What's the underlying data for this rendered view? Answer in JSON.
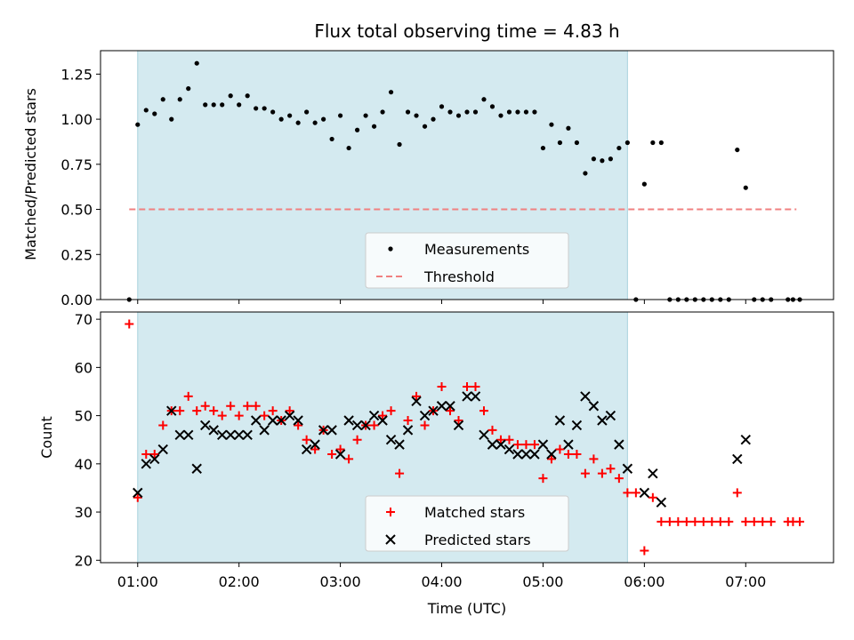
{
  "colors": {
    "observing_span": "#d4eaf0",
    "threshold": "#f08080",
    "matched": "#ff0000",
    "predicted": "#000000",
    "ratio": "#000000"
  },
  "x_ticks": [
    "01:00",
    "02:00",
    "03:00",
    "04:00",
    "05:00",
    "06:00",
    "07:00"
  ],
  "chart_data": [
    {
      "type": "scatter",
      "title": "Flux total observing time = 4.83 h",
      "ylabel": "Matched/Predicted stars",
      "xlim": [
        "00:38",
        "07:52"
      ],
      "ylim": [
        0,
        1.38
      ],
      "y_ticks": [
        "0.00",
        "0.25",
        "0.50",
        "0.75",
        "1.00",
        "1.25"
      ],
      "shaded_span": [
        "01:00",
        "05:50"
      ],
      "threshold": {
        "value": 0.5,
        "x_range": [
          "00:55",
          "07:30"
        ]
      },
      "legend": {
        "position": "lower-center",
        "entries": [
          "Measurements",
          "Threshold"
        ]
      },
      "series": [
        {
          "name": "Measurements",
          "points": [
            [
              "00:55",
              0.0
            ],
            [
              "01:00",
              0.97
            ],
            [
              "01:05",
              1.05
            ],
            [
              "01:10",
              1.03
            ],
            [
              "01:15",
              1.11
            ],
            [
              "01:20",
              1.0
            ],
            [
              "01:25",
              1.11
            ],
            [
              "01:30",
              1.17
            ],
            [
              "01:35",
              1.31
            ],
            [
              "01:40",
              1.08
            ],
            [
              "01:45",
              1.08
            ],
            [
              "01:50",
              1.08
            ],
            [
              "01:55",
              1.13
            ],
            [
              "02:00",
              1.08
            ],
            [
              "02:05",
              1.13
            ],
            [
              "02:10",
              1.06
            ],
            [
              "02:15",
              1.06
            ],
            [
              "02:20",
              1.04
            ],
            [
              "02:25",
              1.0
            ],
            [
              "02:30",
              1.02
            ],
            [
              "02:35",
              0.98
            ],
            [
              "02:40",
              1.04
            ],
            [
              "02:45",
              0.98
            ],
            [
              "02:50",
              1.0
            ],
            [
              "02:55",
              0.89
            ],
            [
              "03:00",
              1.02
            ],
            [
              "03:05",
              0.84
            ],
            [
              "03:10",
              0.94
            ],
            [
              "03:15",
              1.02
            ],
            [
              "03:20",
              0.96
            ],
            [
              "03:25",
              1.04
            ],
            [
              "03:30",
              1.15
            ],
            [
              "03:35",
              0.86
            ],
            [
              "03:40",
              1.04
            ],
            [
              "03:45",
              1.02
            ],
            [
              "03:50",
              0.96
            ],
            [
              "03:55",
              1.0
            ],
            [
              "04:00",
              1.07
            ],
            [
              "04:05",
              1.04
            ],
            [
              "04:10",
              1.02
            ],
            [
              "04:15",
              1.04
            ],
            [
              "04:20",
              1.04
            ],
            [
              "04:25",
              1.11
            ],
            [
              "04:30",
              1.07
            ],
            [
              "04:35",
              1.02
            ],
            [
              "04:40",
              1.04
            ],
            [
              "04:45",
              1.04
            ],
            [
              "04:50",
              1.04
            ],
            [
              "04:55",
              1.04
            ],
            [
              "05:00",
              0.84
            ],
            [
              "05:05",
              0.97
            ],
            [
              "05:10",
              0.87
            ],
            [
              "05:15",
              0.95
            ],
            [
              "05:20",
              0.87
            ],
            [
              "05:25",
              0.7
            ],
            [
              "05:30",
              0.78
            ],
            [
              "05:35",
              0.77
            ],
            [
              "05:40",
              0.78
            ],
            [
              "05:45",
              0.84
            ],
            [
              "05:50",
              0.87
            ],
            [
              "05:55",
              0.0
            ],
            [
              "06:00",
              0.64
            ],
            [
              "06:05",
              0.87
            ],
            [
              "06:10",
              0.87
            ],
            [
              "06:15",
              0.0
            ],
            [
              "06:20",
              0.0
            ],
            [
              "06:25",
              0.0
            ],
            [
              "06:30",
              0.0
            ],
            [
              "06:35",
              0.0
            ],
            [
              "06:40",
              0.0
            ],
            [
              "06:45",
              0.0
            ],
            [
              "06:50",
              0.0
            ],
            [
              "06:55",
              0.83
            ],
            [
              "07:00",
              0.62
            ],
            [
              "07:05",
              0.0
            ],
            [
              "07:10",
              0.0
            ],
            [
              "07:15",
              0.0
            ],
            [
              "07:25",
              0.0
            ],
            [
              "07:28",
              0.0
            ],
            [
              "07:32",
              0.0
            ]
          ]
        }
      ]
    },
    {
      "type": "scatter",
      "title": "",
      "xlabel": "Time (UTC)",
      "ylabel": "Count",
      "xlim": [
        "00:38",
        "07:52"
      ],
      "ylim": [
        19.5,
        71.5
      ],
      "y_ticks": [
        "20",
        "30",
        "40",
        "50",
        "60",
        "70"
      ],
      "shaded_span": [
        "01:00",
        "05:50"
      ],
      "legend": {
        "position": "lower-center",
        "entries": [
          "Matched stars",
          "Predicted stars"
        ]
      },
      "series": [
        {
          "name": "Matched stars",
          "marker": "plus",
          "points": [
            [
              "00:55",
              69
            ],
            [
              "01:00",
              33
            ],
            [
              "01:05",
              42
            ],
            [
              "01:10",
              42
            ],
            [
              "01:15",
              48
            ],
            [
              "01:20",
              51
            ],
            [
              "01:25",
              51
            ],
            [
              "01:30",
              54
            ],
            [
              "01:35",
              51
            ],
            [
              "01:40",
              52
            ],
            [
              "01:45",
              51
            ],
            [
              "01:50",
              50
            ],
            [
              "01:55",
              52
            ],
            [
              "02:00",
              50
            ],
            [
              "02:05",
              52
            ],
            [
              "02:10",
              52
            ],
            [
              "02:15",
              50
            ],
            [
              "02:20",
              51
            ],
            [
              "02:25",
              49
            ],
            [
              "02:30",
              51
            ],
            [
              "02:35",
              48
            ],
            [
              "02:40",
              45
            ],
            [
              "02:45",
              43
            ],
            [
              "02:50",
              47
            ],
            [
              "02:55",
              42
            ],
            [
              "03:00",
              43
            ],
            [
              "03:05",
              41
            ],
            [
              "03:10",
              45
            ],
            [
              "03:15",
              48
            ],
            [
              "03:20",
              48
            ],
            [
              "03:25",
              50
            ],
            [
              "03:30",
              51
            ],
            [
              "03:35",
              38
            ],
            [
              "03:40",
              49
            ],
            [
              "03:45",
              54
            ],
            [
              "03:50",
              48
            ],
            [
              "03:55",
              51
            ],
            [
              "04:00",
              56
            ],
            [
              "04:05",
              51
            ],
            [
              "04:10",
              49
            ],
            [
              "04:15",
              56
            ],
            [
              "04:20",
              56
            ],
            [
              "04:25",
              51
            ],
            [
              "04:30",
              47
            ],
            [
              "04:35",
              45
            ],
            [
              "04:40",
              45
            ],
            [
              "04:45",
              44
            ],
            [
              "04:50",
              44
            ],
            [
              "04:55",
              44
            ],
            [
              "05:00",
              37
            ],
            [
              "05:05",
              41
            ],
            [
              "05:10",
              43
            ],
            [
              "05:15",
              42
            ],
            [
              "05:20",
              42
            ],
            [
              "05:25",
              38
            ],
            [
              "05:30",
              41
            ],
            [
              "05:35",
              38
            ],
            [
              "05:40",
              39
            ],
            [
              "05:45",
              37
            ],
            [
              "05:50",
              34
            ],
            [
              "05:55",
              34
            ],
            [
              "06:00",
              22
            ],
            [
              "06:05",
              33
            ],
            [
              "06:10",
              28
            ],
            [
              "06:15",
              28
            ],
            [
              "06:20",
              28
            ],
            [
              "06:25",
              28
            ],
            [
              "06:30",
              28
            ],
            [
              "06:35",
              28
            ],
            [
              "06:40",
              28
            ],
            [
              "06:45",
              28
            ],
            [
              "06:50",
              28
            ],
            [
              "06:55",
              34
            ],
            [
              "07:00",
              28
            ],
            [
              "07:05",
              28
            ],
            [
              "07:10",
              28
            ],
            [
              "07:15",
              28
            ],
            [
              "07:25",
              28
            ],
            [
              "07:28",
              28
            ],
            [
              "07:32",
              28
            ]
          ]
        },
        {
          "name": "Predicted stars",
          "marker": "x",
          "points": [
            [
              "01:00",
              34
            ],
            [
              "01:05",
              40
            ],
            [
              "01:10",
              41
            ],
            [
              "01:15",
              43
            ],
            [
              "01:20",
              51
            ],
            [
              "01:25",
              46
            ],
            [
              "01:30",
              46
            ],
            [
              "01:35",
              39
            ],
            [
              "01:40",
              48
            ],
            [
              "01:45",
              47
            ],
            [
              "01:50",
              46
            ],
            [
              "01:55",
              46
            ],
            [
              "02:00",
              46
            ],
            [
              "02:05",
              46
            ],
            [
              "02:10",
              49
            ],
            [
              "02:15",
              47
            ],
            [
              "02:20",
              49
            ],
            [
              "02:25",
              49
            ],
            [
              "02:30",
              50
            ],
            [
              "02:35",
              49
            ],
            [
              "02:40",
              43
            ],
            [
              "02:45",
              44
            ],
            [
              "02:50",
              47
            ],
            [
              "02:55",
              47
            ],
            [
              "03:00",
              42
            ],
            [
              "03:05",
              49
            ],
            [
              "03:10",
              48
            ],
            [
              "03:15",
              48
            ],
            [
              "03:20",
              50
            ],
            [
              "03:25",
              49
            ],
            [
              "03:30",
              45
            ],
            [
              "03:35",
              44
            ],
            [
              "03:40",
              47
            ],
            [
              "03:45",
              53
            ],
            [
              "03:50",
              50
            ],
            [
              "03:55",
              51
            ],
            [
              "04:00",
              52
            ],
            [
              "04:05",
              52
            ],
            [
              "04:10",
              48
            ],
            [
              "04:15",
              54
            ],
            [
              "04:20",
              54
            ],
            [
              "04:25",
              46
            ],
            [
              "04:30",
              44
            ],
            [
              "04:35",
              44
            ],
            [
              "04:40",
              43
            ],
            [
              "04:45",
              42
            ],
            [
              "04:50",
              42
            ],
            [
              "04:55",
              42
            ],
            [
              "05:00",
              44
            ],
            [
              "05:05",
              42
            ],
            [
              "05:10",
              49
            ],
            [
              "05:15",
              44
            ],
            [
              "05:20",
              48
            ],
            [
              "05:25",
              54
            ],
            [
              "05:30",
              52
            ],
            [
              "05:35",
              49
            ],
            [
              "05:40",
              50
            ],
            [
              "05:45",
              44
            ],
            [
              "05:50",
              39
            ],
            [
              "06:00",
              34
            ],
            [
              "06:05",
              38
            ],
            [
              "06:10",
              32
            ],
            [
              "06:55",
              41
            ],
            [
              "07:00",
              45
            ]
          ]
        }
      ]
    }
  ]
}
